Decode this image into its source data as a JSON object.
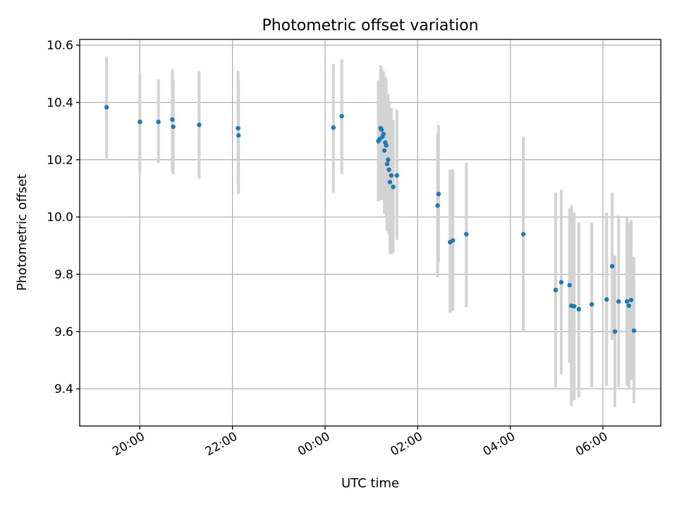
{
  "chart_data": {
    "type": "scatter",
    "title": "Photometric offset variation",
    "xlabel": "UTC time",
    "ylabel": "Photometric offset",
    "x_unit": "hours after 00:00 UTC (19:xx..23:xx shown as negative offsets)",
    "xlim": [
      -5.3,
      7.25
    ],
    "ylim": [
      9.27,
      10.62
    ],
    "x_ticks": [
      {
        "value": -4,
        "label": "20:00"
      },
      {
        "value": -2,
        "label": "22:00"
      },
      {
        "value": 0,
        "label": "00:00"
      },
      {
        "value": 2,
        "label": "02:00"
      },
      {
        "value": 4,
        "label": "04:00"
      },
      {
        "value": 6,
        "label": "06:00"
      }
    ],
    "y_ticks": [
      {
        "value": 9.4,
        "label": "9.4"
      },
      {
        "value": 9.6,
        "label": "9.6"
      },
      {
        "value": 9.8,
        "label": "9.8"
      },
      {
        "value": 10.0,
        "label": "10.0"
      },
      {
        "value": 10.2,
        "label": "10.2"
      },
      {
        "value": 10.4,
        "label": "10.4"
      },
      {
        "value": 10.6,
        "label": "10.6"
      }
    ],
    "grid": true,
    "marker_color": "#1f77b4",
    "errorbar_color": "#d3d3d3",
    "points": [
      {
        "x": -4.72,
        "y": 10.383,
        "lo": 10.205,
        "hi": 10.56
      },
      {
        "x": -4.0,
        "y": 10.332,
        "lo": 10.155,
        "hi": 10.5
      },
      {
        "x": -3.6,
        "y": 10.332,
        "lo": 10.19,
        "hi": 10.48
      },
      {
        "x": -3.3,
        "y": 10.34,
        "lo": 10.16,
        "hi": 10.515
      },
      {
        "x": -3.28,
        "y": 10.315,
        "lo": 10.15,
        "hi": 10.48
      },
      {
        "x": -2.72,
        "y": 10.322,
        "lo": 10.135,
        "hi": 10.51
      },
      {
        "x": -1.88,
        "y": 10.31,
        "lo": 10.115,
        "hi": 10.51
      },
      {
        "x": -1.87,
        "y": 10.285,
        "lo": 10.08,
        "hi": 10.48
      },
      {
        "x": 0.18,
        "y": 10.312,
        "lo": 10.085,
        "hi": 10.535
      },
      {
        "x": 0.36,
        "y": 10.352,
        "lo": 10.15,
        "hi": 10.55
      },
      {
        "x": 1.15,
        "y": 10.265,
        "lo": 10.055,
        "hi": 10.475
      },
      {
        "x": 1.18,
        "y": 10.272,
        "lo": 10.06,
        "hi": 10.48
      },
      {
        "x": 1.2,
        "y": 10.31,
        "lo": 10.09,
        "hi": 10.53
      },
      {
        "x": 1.22,
        "y": 10.305,
        "lo": 10.095,
        "hi": 10.52
      },
      {
        "x": 1.24,
        "y": 10.28,
        "lo": 10.06,
        "hi": 10.5
      },
      {
        "x": 1.26,
        "y": 10.29,
        "lo": 10.07,
        "hi": 10.51
      },
      {
        "x": 1.28,
        "y": 10.232,
        "lo": 10.01,
        "hi": 10.46
      },
      {
        "x": 1.3,
        "y": 10.26,
        "lo": 10.03,
        "hi": 10.49
      },
      {
        "x": 1.32,
        "y": 10.25,
        "lo": 10.0,
        "hi": 10.48
      },
      {
        "x": 1.34,
        "y": 10.185,
        "lo": 9.95,
        "hi": 10.42
      },
      {
        "x": 1.36,
        "y": 10.2,
        "lo": 9.97,
        "hi": 10.43
      },
      {
        "x": 1.38,
        "y": 10.165,
        "lo": 9.94,
        "hi": 10.4
      },
      {
        "x": 1.4,
        "y": 10.122,
        "lo": 9.87,
        "hi": 10.37
      },
      {
        "x": 1.43,
        "y": 10.145,
        "lo": 9.87,
        "hi": 10.38
      },
      {
        "x": 1.47,
        "y": 10.105,
        "lo": 9.875,
        "hi": 10.34
      },
      {
        "x": 1.55,
        "y": 10.145,
        "lo": 9.92,
        "hi": 10.375
      },
      {
        "x": 2.43,
        "y": 10.04,
        "lo": 9.79,
        "hi": 10.29
      },
      {
        "x": 2.45,
        "y": 10.08,
        "lo": 9.84,
        "hi": 10.32
      },
      {
        "x": 2.7,
        "y": 9.912,
        "lo": 9.665,
        "hi": 10.165
      },
      {
        "x": 2.76,
        "y": 9.918,
        "lo": 9.672,
        "hi": 10.165
      },
      {
        "x": 3.05,
        "y": 9.94,
        "lo": 9.685,
        "hi": 10.19
      },
      {
        "x": 4.28,
        "y": 9.94,
        "lo": 9.6,
        "hi": 10.28
      },
      {
        "x": 4.98,
        "y": 9.745,
        "lo": 9.405,
        "hi": 10.085
      },
      {
        "x": 5.1,
        "y": 9.772,
        "lo": 9.45,
        "hi": 10.095
      },
      {
        "x": 5.28,
        "y": 9.762,
        "lo": 9.49,
        "hi": 10.03
      },
      {
        "x": 5.32,
        "y": 9.69,
        "lo": 9.34,
        "hi": 10.04
      },
      {
        "x": 5.38,
        "y": 9.688,
        "lo": 9.36,
        "hi": 10.015
      },
      {
        "x": 5.48,
        "y": 9.678,
        "lo": 9.37,
        "hi": 9.98
      },
      {
        "x": 5.76,
        "y": 9.695,
        "lo": 9.405,
        "hi": 9.98
      },
      {
        "x": 6.08,
        "y": 9.712,
        "lo": 9.41,
        "hi": 10.015
      },
      {
        "x": 6.2,
        "y": 9.828,
        "lo": 9.57,
        "hi": 10.085
      },
      {
        "x": 6.26,
        "y": 9.6,
        "lo": 9.335,
        "hi": 9.865
      },
      {
        "x": 6.34,
        "y": 9.705,
        "lo": 9.405,
        "hi": 10.005
      },
      {
        "x": 6.52,
        "y": 9.705,
        "lo": 9.41,
        "hi": 10.0
      },
      {
        "x": 6.56,
        "y": 9.69,
        "lo": 9.4,
        "hi": 9.98
      },
      {
        "x": 6.61,
        "y": 9.71,
        "lo": 9.43,
        "hi": 9.99
      },
      {
        "x": 6.67,
        "y": 9.603,
        "lo": 9.35,
        "hi": 9.86
      }
    ]
  }
}
